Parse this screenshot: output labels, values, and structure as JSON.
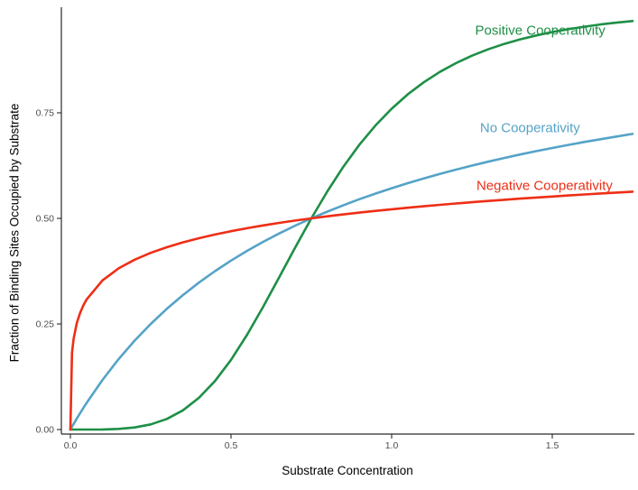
{
  "chart_data": {
    "type": "line",
    "title": "",
    "xlabel": "Substrate Concentration",
    "ylabel": "Fraction of Binding Sites Occupied by Substrate",
    "xlim": [
      0,
      1.75
    ],
    "ylim": [
      0,
      1.0
    ],
    "grid": false,
    "legend_position": "annotations-right",
    "axis_color": "#2a2a2a",
    "tick_label_color": "#4d4d4d",
    "x_ticks": {
      "values": [
        0,
        0.5,
        1.0,
        1.5
      ],
      "labels": [
        "0.0",
        "0.5",
        "1.0",
        "1.5"
      ]
    },
    "y_ticks": {
      "values": [
        0,
        0.25,
        0.5,
        0.75
      ],
      "labels": [
        "0.00",
        "0.25",
        "0.50",
        "0.75"
      ]
    },
    "x": [
      0,
      0.005,
      0.01,
      0.02,
      0.03,
      0.04,
      0.05,
      0.1,
      0.15,
      0.2,
      0.25,
      0.3,
      0.35,
      0.4,
      0.45,
      0.5,
      0.55,
      0.6,
      0.65,
      0.7,
      0.75,
      0.8,
      0.85,
      0.9,
      0.95,
      1.0,
      1.05,
      1.1,
      1.15,
      1.2,
      1.25,
      1.3,
      1.35,
      1.4,
      1.45,
      1.5,
      1.55,
      1.6,
      1.65,
      1.7,
      1.75
    ],
    "series": [
      {
        "name": "Positive Cooperativity",
        "color": "#1e8f46",
        "values": [
          0,
          0,
          0,
          0,
          0,
          0,
          2e-05,
          0.0003,
          0.0016,
          0.005,
          0.0122,
          0.025,
          0.0453,
          0.0749,
          0.1147,
          0.1649,
          0.2243,
          0.2906,
          0.3607,
          0.4314,
          0.5,
          0.5642,
          0.6226,
          0.6747,
          0.7202,
          0.7596,
          0.7935,
          0.8223,
          0.8468,
          0.8676,
          0.8853,
          0.9003,
          0.913,
          0.9239,
          0.9332,
          0.9412,
          0.948,
          0.9539,
          0.9591,
          0.9635,
          0.9674
        ]
      },
      {
        "name": "No Cooperativity",
        "color": "#55a3c7",
        "values": [
          0,
          0.0066,
          0.0132,
          0.026,
          0.0385,
          0.0506,
          0.0625,
          0.1176,
          0.1667,
          0.2105,
          0.25,
          0.2857,
          0.3182,
          0.3478,
          0.375,
          0.4,
          0.4231,
          0.4444,
          0.4643,
          0.4828,
          0.5,
          0.5161,
          0.5313,
          0.5455,
          0.5588,
          0.5714,
          0.5833,
          0.5946,
          0.6053,
          0.6154,
          0.625,
          0.6341,
          0.6429,
          0.6512,
          0.6591,
          0.6667,
          0.6739,
          0.6809,
          0.6875,
          0.6939,
          0.7
        ]
      },
      {
        "name": "Negative Cooperativity",
        "color": "#ee2e16",
        "values": [
          0,
          0.182,
          0.215,
          0.2522,
          0.2757,
          0.2933,
          0.3074,
          0.3533,
          0.3816,
          0.4022,
          0.4184,
          0.4317,
          0.4431,
          0.453,
          0.4618,
          0.4696,
          0.4767,
          0.4833,
          0.4893,
          0.4948,
          0.5,
          0.5049,
          0.5094,
          0.5137,
          0.5177,
          0.5216,
          0.5252,
          0.5287,
          0.532,
          0.5352,
          0.5382,
          0.5412,
          0.544,
          0.5467,
          0.5493,
          0.5518,
          0.5542,
          0.5566,
          0.5589,
          0.5611,
          0.5632
        ]
      }
    ],
    "annotations": [
      {
        "text": "Positive Cooperativity",
        "color": "#1e8f46",
        "x": 1.26,
        "y": 0.945
      },
      {
        "text": "No Cooperativity",
        "color": "#55a3c7",
        "x": 1.275,
        "y": 0.715
      },
      {
        "text": "Negative Cooperativity",
        "color": "#ee2e16",
        "x": 1.264,
        "y": 0.578
      }
    ]
  }
}
